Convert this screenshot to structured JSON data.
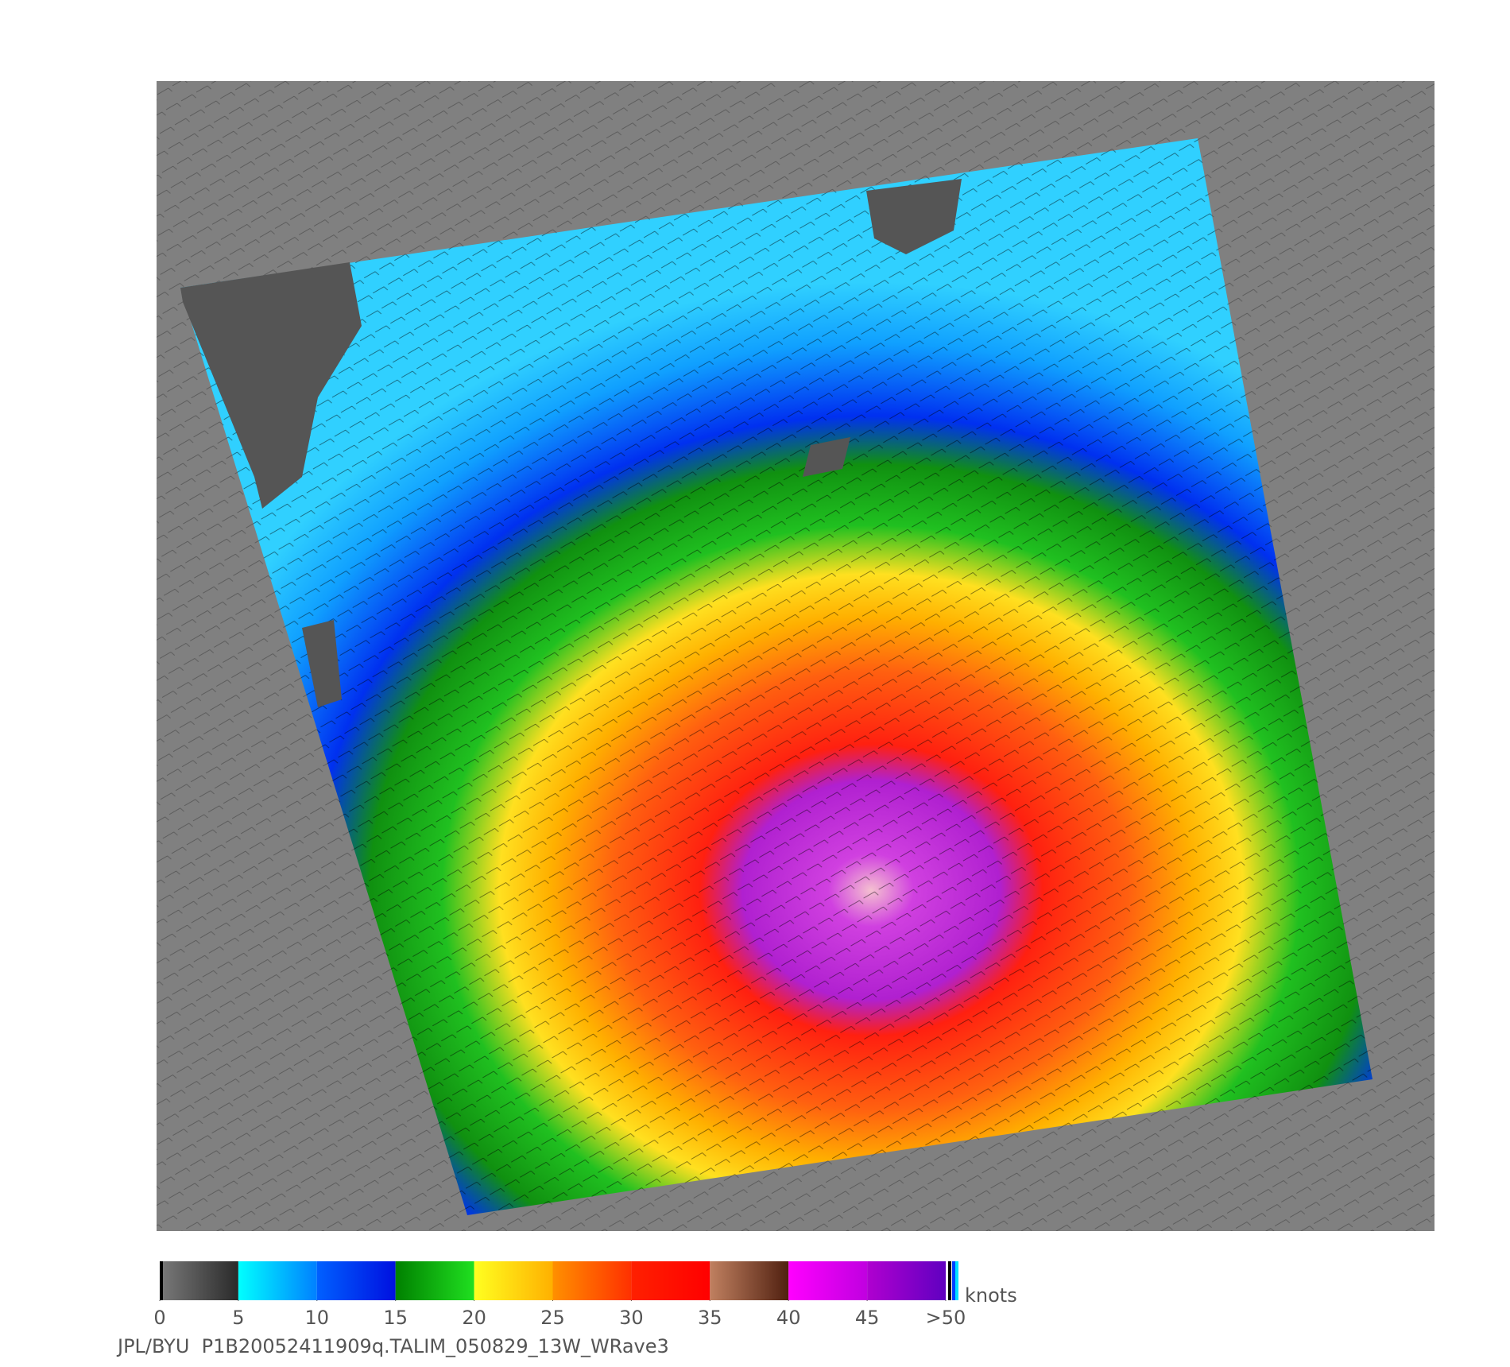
{
  "colorbar": {
    "unit": "knots",
    "range": [
      0,
      50
    ],
    "ticks": [
      0,
      5,
      10,
      15,
      20,
      25,
      30,
      35,
      40,
      45,
      {
        "value": 50,
        "label": ">50"
      }
    ],
    "segments": [
      [
        "#7a7a7a",
        "#2a2a2a"
      ],
      [
        "#00ffff",
        "#0080ff"
      ],
      [
        "#0060ff",
        "#0010e0"
      ],
      [
        "#008000",
        "#20e020"
      ],
      [
        "#ffff20",
        "#ffb000"
      ],
      [
        "#ff9000",
        "#ff3000"
      ],
      [
        "#ff2000",
        "#ff0000"
      ],
      [
        "#c08060",
        "#502010"
      ],
      [
        "#ff00ff",
        "#c000e0"
      ],
      [
        "#b000d0",
        "#6000c0"
      ]
    ]
  },
  "caption": "JPL/BYU  P1B20052411909q.TALIM_050829_13W_WRave3"
}
